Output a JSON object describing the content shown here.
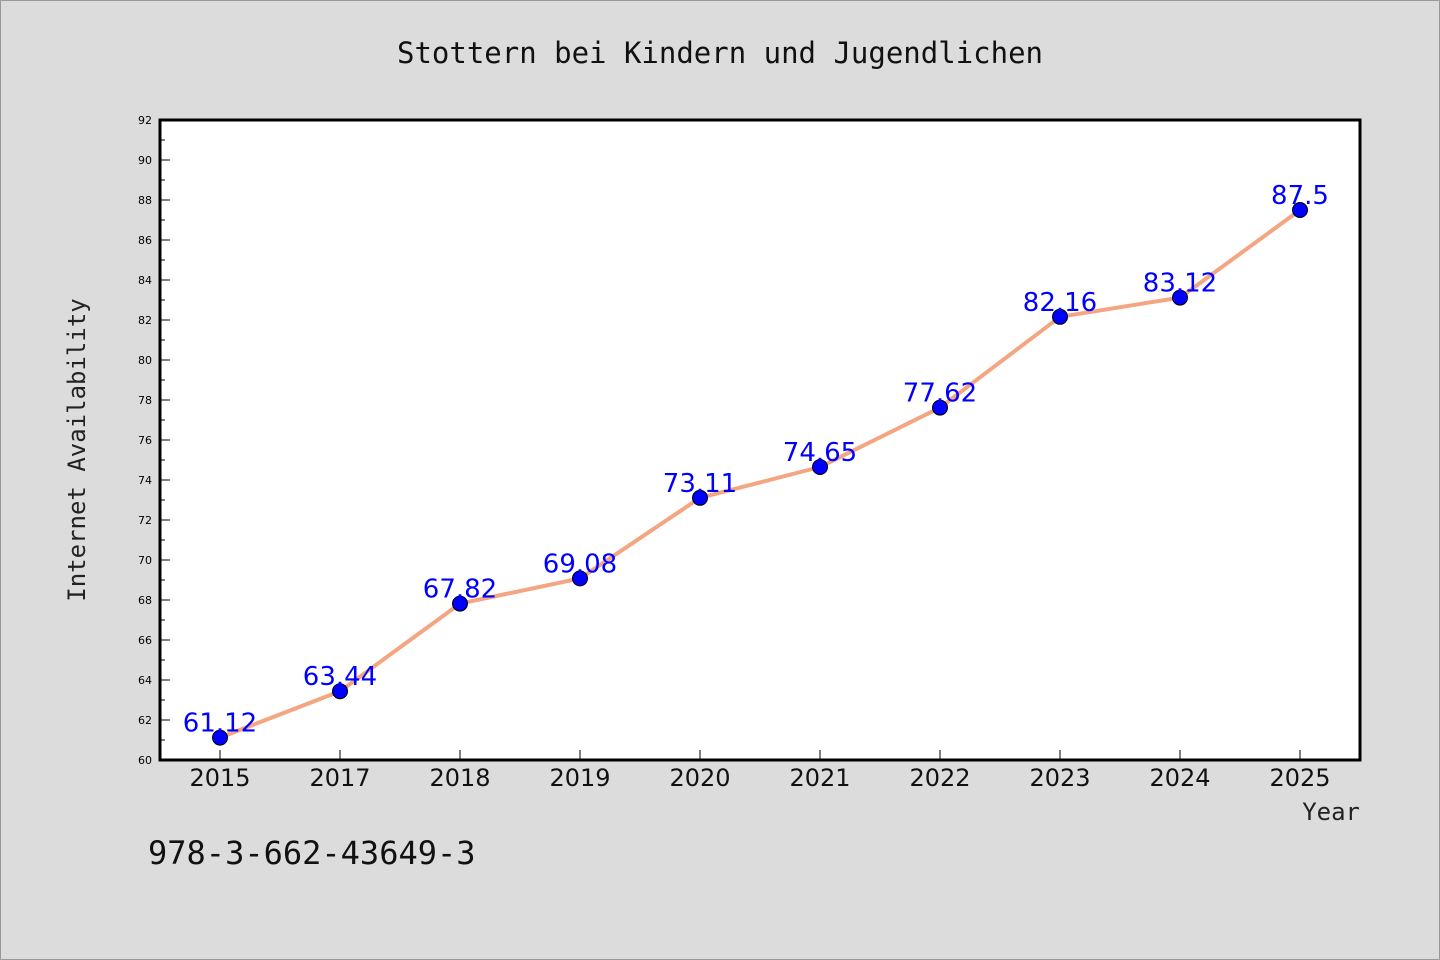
{
  "chart_data": {
    "type": "line",
    "title": "Stottern bei Kindern und Jugendlichen",
    "xlabel": "Year",
    "ylabel": "Internet Availability",
    "categories": [
      "2015",
      "2017",
      "2018",
      "2019",
      "2020",
      "2021",
      "2022",
      "2023",
      "2024",
      "2025"
    ],
    "series": [
      {
        "values": [
          61.12,
          63.44,
          67.82,
          69.08,
          73.11,
          74.65,
          77.62,
          82.16,
          83.12,
          87.5
        ],
        "labels": [
          "61.12",
          "63.44",
          "67.82",
          "69.08",
          "73.11",
          "74.65",
          "77.62",
          "82.16",
          "83.12",
          "87.5"
        ],
        "line_color": "#f4a582",
        "marker_color": "#0000ff",
        "label_color": "#0000ff"
      }
    ],
    "ylim": [
      60,
      92
    ],
    "yticks": [
      "60",
      "62",
      "64",
      "66",
      "68",
      "70",
      "72",
      "74",
      "76",
      "78",
      "80",
      "82",
      "84",
      "86",
      "88",
      "90",
      "92"
    ],
    "grid": false,
    "annotation": "978-3-662-43649-3"
  }
}
